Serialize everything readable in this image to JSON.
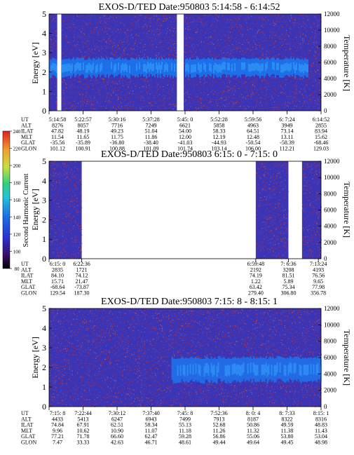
{
  "colors": {
    "background_noise": "#3b35b5",
    "band": "#1d6fe8",
    "band_core": "#2f95f5",
    "speckle": "#d0343a",
    "speckle_light": "#f07a30",
    "gap": "#ffffff"
  },
  "chart_data": [
    {
      "type": "heatmap",
      "title": "EXOS-D/TED   Date:950803   5:14:58 - 6:14:52",
      "ylabel": "Energy [eV]",
      "ylabel_right": "Temperature [K]",
      "ylim": [
        0,
        5
      ],
      "ylim_right": [
        0,
        12000
      ],
      "yticks": [
        "0",
        "1",
        "2",
        "3",
        "4",
        "5"
      ],
      "yticks_right": [
        "0",
        "2000",
        "4000",
        "6000",
        "8000",
        "10000",
        "12000"
      ],
      "data_gaps": [
        [
          0.03,
          0.045
        ],
        [
          0.47,
          0.495
        ]
      ],
      "band": {
        "x_start": 0.0,
        "x_end": 0.95,
        "energy_low": 1.8,
        "energy_high": 2.7
      },
      "table": {
        "row_labels": [
          "UT",
          "ALT",
          "ILAT",
          "MLT",
          "GLAT",
          "GLON"
        ],
        "columns": [
          [
            "5:14:58",
            "8276",
            "47.82",
            "11.54",
            "-35.56",
            "101.12"
          ],
          [
            "5:22:57",
            "8057",
            "48.19",
            "11.65",
            "-35.89",
            "100.91"
          ],
          [
            "5:30:16",
            "7716",
            "49.23",
            "11.75",
            "-36.80",
            "100.88"
          ],
          [
            "5:37:28",
            "7249",
            "51.04",
            "11.86",
            "-38.40",
            "101.09"
          ],
          [
            "5:45: 0",
            "6621",
            "54.00",
            "12.00",
            "-41.03",
            "101.74"
          ],
          [
            "5:52:28",
            "5858",
            "58.33",
            "12.19",
            "-44.93",
            "103.14"
          ],
          [
            "5:59:56",
            "4963",
            "64.51",
            "12.48",
            "-50.54",
            "106.00"
          ],
          [
            "6: 7:24",
            "3949",
            "73.14",
            "13.11",
            "-58.39",
            "112.21"
          ],
          [
            "6:14:52",
            "2855",
            "83.94",
            "15.62",
            "-68.46",
            "129.03"
          ]
        ]
      }
    },
    {
      "type": "heatmap",
      "title": "EXOS-D/TED   Date:950803   6:15: 0 - 7:15: 0",
      "ylabel": "Energy [eV]",
      "ylabel_right": "Temperature [K]",
      "ylim": [
        0,
        5
      ],
      "ylim_right": [
        0,
        12000
      ],
      "yticks": [
        "0",
        "1",
        "2",
        "3",
        "4",
        "5"
      ],
      "yticks_right": [
        "0",
        "2000",
        "4000",
        "6000",
        "8000",
        "10000",
        "12000"
      ],
      "data_segments": [
        [
          0.0,
          0.12
        ],
        [
          0.76,
          0.88
        ],
        [
          0.93,
          1.0
        ]
      ],
      "table": {
        "row_labels": [
          "UT",
          "ALT",
          "ILAT",
          "MLT",
          "GLAT",
          "GLON"
        ],
        "columns": [
          [
            "6:15: 0",
            "2835",
            "84.10",
            "15.71",
            "-68.64",
            "129.54"
          ],
          [
            "6:22:36",
            "1721",
            "74.12",
            "21.47",
            "-73.87",
            "187.30"
          ],
          [
            "6:59:48",
            "2192",
            "74.19",
            "1.22",
            "63.42",
            "279.40"
          ],
          [
            "7: 6:36",
            "3208",
            "81.51",
            "5.89",
            "75.34",
            "306.80"
          ],
          [
            "7:13:24",
            "4193",
            "76.56",
            "9.65",
            "77.98",
            "356.78"
          ]
        ]
      }
    },
    {
      "type": "heatmap",
      "title": "EXOS-D/TED   Date:950803   7:15: 8 - 8:15: 1",
      "ylabel": "Energy [eV]",
      "ylabel_right": "Temperature [K]",
      "ylim": [
        0,
        5
      ],
      "ylim_right": [
        0,
        12000
      ],
      "yticks": [
        "0",
        "1",
        "2",
        "3",
        "4",
        "5"
      ],
      "yticks_right": [
        "0",
        "2000",
        "4000",
        "6000",
        "8000",
        "10000",
        "12000"
      ],
      "band": {
        "x_start": 0.45,
        "x_end": 1.0,
        "energy_low": 1.3,
        "energy_high": 2.5
      },
      "table": {
        "row_labels": [
          "UT",
          "ALT",
          "ILAT",
          "MLT",
          "GLAT",
          "GLON"
        ],
        "columns": [
          [
            "7:15: 8",
            "4433",
            "74.84",
            "9.96",
            "77.21",
            "7.47"
          ],
          [
            "7:22:44",
            "5413",
            "67.91",
            "10.62",
            "71.78",
            "33.33"
          ],
          [
            "7:30:12",
            "6247",
            "62.51",
            "10.90",
            "66.60",
            "42.63"
          ],
          [
            "7:37:40",
            "6943",
            "58.34",
            "11.07",
            "62.47",
            "46.71"
          ],
          [
            "7:45: 8",
            "7499",
            "55.13",
            "11.18",
            "59.28",
            "48.61"
          ],
          [
            "7:52:36",
            "7913",
            "52.68",
            "11.26",
            "56.86",
            "49.44"
          ],
          [
            "8: 0: 4",
            "8187",
            "50.86",
            "11.32",
            "55.06",
            "49.64"
          ],
          [
            "8: 7:33",
            "8322",
            "49.59",
            "11.38",
            "53.80",
            "49.45"
          ],
          [
            "8:15: 1",
            "8316",
            "48.83",
            "11.43",
            "53.04",
            "48.98"
          ]
        ]
      }
    }
  ],
  "colorbar": {
    "label": "Second Harmonic Current",
    "ticks": [
      "80",
      "100",
      "120",
      "140",
      "160",
      "180",
      "200",
      "220",
      "240"
    ],
    "colors": [
      "#000000",
      "#5a1f8a",
      "#2a2fd0",
      "#1d6fe8",
      "#22c4d8",
      "#34d07a",
      "#c8e040",
      "#f0a030",
      "#e02020"
    ]
  }
}
